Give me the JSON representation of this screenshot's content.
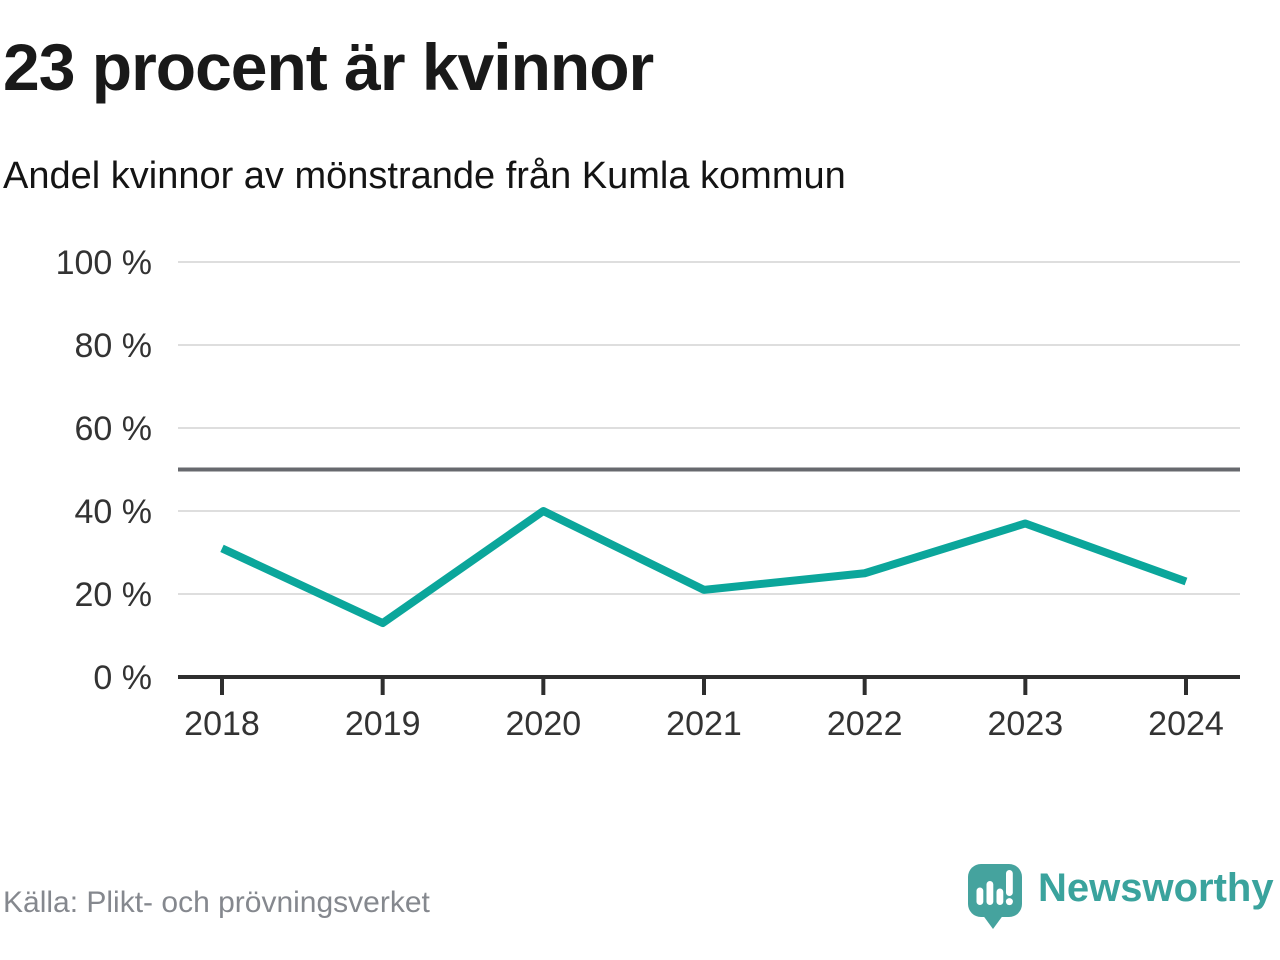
{
  "header": {
    "title": "23 procent är kvinnor",
    "subtitle": "Andel kvinnor av mönstrande från Kumla kommun"
  },
  "chart_data": {
    "type": "line",
    "title": "23 procent är kvinnor",
    "subtitle": "Andel kvinnor av mönstrande från Kumla kommun",
    "x": [
      2018,
      2019,
      2020,
      2021,
      2022,
      2023,
      2024
    ],
    "series": [
      {
        "name": "Andel kvinnor",
        "values": [
          31,
          13,
          40,
          21,
          25,
          37,
          23
        ]
      }
    ],
    "unit": "%",
    "ylim": [
      0,
      100
    ],
    "yticks": [
      0,
      20,
      40,
      60,
      80,
      100
    ],
    "ytick_suffix": " %",
    "reference_line": 50,
    "grid": "horizontal",
    "legend_position": "none",
    "colors": {
      "line": "#0ba69b",
      "grid": "#dedede",
      "reference": "#67696e",
      "axis": "#2e2e2e",
      "tick_text": "#333333"
    }
  },
  "footer": {
    "source": "Källa: Plikt- och prövningsverket",
    "brand": "Newsworthy",
    "brand_color": "#3aa39d",
    "logo_color": "#45a39e"
  }
}
